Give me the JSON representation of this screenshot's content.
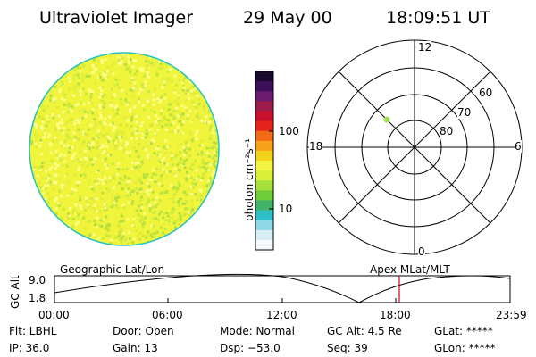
{
  "header": {
    "instrument": "Ultraviolet Imager",
    "date": "29 May 00",
    "time": "18:09:51 UT"
  },
  "colorbar": {
    "unit_label": "photon cm⁻²s⁻¹",
    "ticks": [
      "100",
      "10"
    ],
    "colors": [
      "#1a0a2e",
      "#3c0f5a",
      "#6a1b6e",
      "#9c1d4a",
      "#c8102e",
      "#e6231e",
      "#f26a14",
      "#f7a21a",
      "#f2d21a",
      "#f2f542",
      "#d8f03a",
      "#a6e03a",
      "#6ecb3a",
      "#44b36a",
      "#2ec0c8",
      "#8fd8e8",
      "#d6eef4",
      "#f4fafc"
    ]
  },
  "disk": {
    "base_color": "#f0f43a",
    "speckle_colors": [
      "#ffff8c",
      "#e0ee3a",
      "#cde93c",
      "#b6e03e"
    ],
    "edge_color": "#22c1c3"
  },
  "polar_plot": {
    "mlt_labels": {
      "top": "12",
      "bottom": "0",
      "left": "18",
      "right": "6"
    },
    "lat_labels": [
      "60",
      "70",
      "80"
    ],
    "point_color": "#9be14a"
  },
  "timeline": {
    "ylabel": "GC Alt",
    "y_ticks": [
      "9.0",
      "1.8"
    ],
    "left_label": "Geographic Lat/Lon",
    "right_label": "Apex MLat/MLT",
    "x_ticks": [
      "00:00",
      "06:00",
      "12:00",
      "18:00",
      "23:59"
    ],
    "marker_color": "#d0021b",
    "marker_time_fraction": 0.7569
  },
  "info": {
    "flt": "Flt: LBHL",
    "door": "Door: Open",
    "mode": "Mode: Normal",
    "gc_alt": "GC Alt: 4.5 Re",
    "glat": "GLat: *****",
    "ip": "IP: 36.0",
    "gain": "Gain: 13",
    "dsp": "Dsp:  −53.0",
    "seq": "Seq: 39",
    "glon": "GLon: *****"
  }
}
